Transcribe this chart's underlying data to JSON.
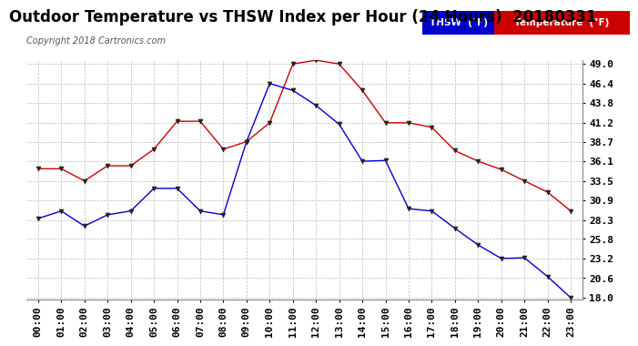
{
  "title": "Outdoor Temperature vs THSW Index per Hour (24 Hours)  20180331",
  "copyright": "Copyright 2018 Cartronics.com",
  "hours": [
    "00:00",
    "01:00",
    "02:00",
    "03:00",
    "04:00",
    "05:00",
    "06:00",
    "07:00",
    "08:00",
    "09:00",
    "10:00",
    "11:00",
    "12:00",
    "13:00",
    "14:00",
    "15:00",
    "16:00",
    "17:00",
    "18:00",
    "19:00",
    "20:00",
    "21:00",
    "22:00",
    "23:00"
  ],
  "temperature": [
    35.1,
    35.1,
    33.5,
    35.5,
    35.5,
    37.7,
    41.4,
    41.4,
    37.7,
    38.7,
    41.2,
    49.0,
    49.5,
    49.0,
    45.5,
    41.2,
    41.2,
    40.6,
    37.5,
    36.1,
    35.0,
    33.5,
    32.0,
    29.5
  ],
  "thsw": [
    28.5,
    29.5,
    27.5,
    29.0,
    29.5,
    32.5,
    32.5,
    29.5,
    29.0,
    38.7,
    46.4,
    45.5,
    43.5,
    41.0,
    36.1,
    36.2,
    29.8,
    29.5,
    27.2,
    25.0,
    23.2,
    23.3,
    20.8,
    18.0
  ],
  "ylim_min": 18.0,
  "ylim_max": 49.0,
  "yticks": [
    18.0,
    20.6,
    23.2,
    25.8,
    28.3,
    30.9,
    33.5,
    36.1,
    38.7,
    41.2,
    43.8,
    46.4,
    49.0
  ],
  "temp_color": "#cc0000",
  "thsw_color": "#0000cc",
  "bg_color": "#ffffff",
  "grid_color": "#bbbbbb",
  "legend_thsw_bg": "#0000cc",
  "legend_temp_bg": "#cc0000",
  "title_fontsize": 12,
  "copyright_fontsize": 7,
  "tick_fontsize": 8
}
